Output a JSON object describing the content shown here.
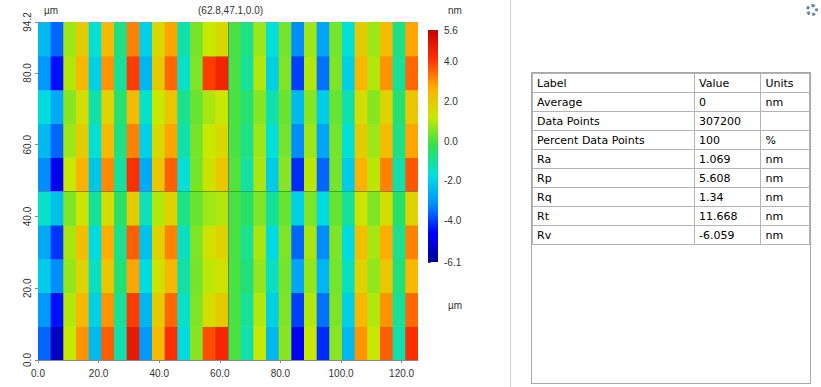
{
  "chart_data": {
    "type": "heatmap",
    "x_label": "µm",
    "y_label": "µm",
    "cursor": {
      "x": 62.8,
      "y": 47.1,
      "label": "(62.8,47.1,0.0)"
    },
    "xlim": [
      0,
      125.4
    ],
    "xticks": [
      {
        "value": 0,
        "label": "0.0"
      },
      {
        "value": 20,
        "label": "20.0"
      },
      {
        "value": 40,
        "label": "40.0"
      },
      {
        "value": 60,
        "label": "60.0"
      },
      {
        "value": 80,
        "label": "80.0"
      },
      {
        "value": 100,
        "label": "100.0"
      },
      {
        "value": 120,
        "label": "120.0"
      }
    ],
    "ylim": [
      0,
      94.2
    ],
    "yticks": [
      {
        "value": 0,
        "label": "0.0"
      },
      {
        "value": 20,
        "label": "20.0"
      },
      {
        "value": 40,
        "label": "40.0"
      },
      {
        "value": 60,
        "label": "60.0"
      },
      {
        "value": 80,
        "label": "80.0"
      },
      94.2
    ],
    "cells": {
      "x": [
        2.09,
        6.27,
        10.45,
        14.63,
        18.81,
        22.99,
        27.17,
        31.35,
        35.53,
        39.71,
        43.89,
        48.07,
        52.25,
        56.43,
        60.61,
        64.79,
        68.97,
        73.15,
        77.33,
        81.51,
        85.69,
        89.87,
        94.05,
        98.23,
        102.41,
        106.59,
        110.77,
        114.95,
        119.13,
        123.31
      ],
      "y": [
        4.71,
        14.13,
        23.55,
        32.97,
        42.39,
        51.81,
        61.23,
        70.65,
        80.07,
        89.49
      ],
      "z": [
        [
          -3.6,
          -5.4,
          1.2,
          3.0,
          -2.4,
          3.6,
          -1.2,
          4.8,
          -3.0,
          2.4,
          4.2,
          -1.8,
          0.6,
          3.8,
          4.4,
          0,
          -1.2,
          1.2,
          -2.4,
          0.6,
          -4.8,
          1.2,
          -4.2,
          0.6,
          -2.4,
          3.0,
          1.2,
          3.6,
          -1.2,
          4.2
        ],
        [
          -3,
          -4.5,
          1,
          2.5,
          -2,
          3,
          -1,
          4,
          -2.5,
          2,
          3.5,
          -1.5,
          0.5,
          1.5,
          2,
          0,
          -1,
          1,
          -2,
          0.5,
          -4,
          1,
          -3.5,
          0.5,
          -2,
          2.5,
          1,
          3,
          -1,
          3.5
        ],
        [
          -2.1,
          -3.2,
          0.7,
          1.8,
          -1.4,
          2.1,
          -0.7,
          2.8,
          -1.8,
          1.4,
          2.5,
          -1.1,
          0.4,
          1.1,
          1.4,
          0,
          -0.7,
          0.7,
          -1.4,
          0.4,
          -2.8,
          0.7,
          -2.5,
          0.4,
          -1.4,
          1.8,
          0.7,
          2.1,
          -0.7,
          2.5
        ],
        [
          -2.7,
          -4.1,
          0.9,
          2.3,
          -1.8,
          2.7,
          -0.9,
          3.6,
          -2.3,
          1.8,
          3.2,
          -1.4,
          0.5,
          1.4,
          1.8,
          0,
          -0.9,
          0.9,
          -1.8,
          0.5,
          -3.6,
          0.9,
          -3.2,
          0.5,
          -1.8,
          2.3,
          0.9,
          2.7,
          -0.9,
          3.2
        ],
        [
          -1.5,
          -2.3,
          0.5,
          1.3,
          -1,
          1.5,
          -0.5,
          2,
          -1.3,
          1,
          1.8,
          -0.8,
          0.3,
          0.8,
          1,
          0,
          -0.5,
          0.5,
          -1,
          0.3,
          -2,
          0.5,
          -1.8,
          0.3,
          -1,
          1.3,
          0.5,
          1.5,
          -0.5,
          1.8
        ],
        [
          -3.2,
          -4.8,
          1.2,
          2.6,
          -2.2,
          3.1,
          -1.1,
          4.2,
          -2.7,
          2.1,
          3.6,
          -1.6,
          0.4,
          1.4,
          2.1,
          0.1,
          -1.1,
          0.9,
          -2.1,
          0.6,
          -4.2,
          1.1,
          -3.6,
          0.4,
          -2.1,
          2.6,
          1.1,
          3.2,
          -1.2,
          3.7
        ],
        [
          -2.4,
          -3.6,
          0.8,
          2,
          -1.6,
          2.4,
          -0.8,
          3.2,
          -2,
          1.6,
          2.8,
          -1.2,
          0.4,
          1.2,
          1.6,
          0,
          -0.8,
          0.8,
          -1.6,
          0.4,
          -3.2,
          0.8,
          -2.8,
          0.4,
          -1.6,
          2,
          0.8,
          2.4,
          -0.8,
          2.8
        ],
        [
          -1.8,
          -2.7,
          0.6,
          1.5,
          -1.2,
          1.8,
          -0.6,
          2.4,
          -1.5,
          1.2,
          2.1,
          -0.9,
          0.3,
          0.9,
          1.2,
          0,
          -0.6,
          0.6,
          -1.2,
          0.3,
          -2.4,
          0.6,
          -2.1,
          0.3,
          -1.2,
          1.5,
          0.6,
          1.8,
          -0.6,
          2.1
        ],
        [
          -3,
          -4.5,
          1,
          2.5,
          -2,
          3,
          -1,
          4,
          -2.5,
          2,
          3.5,
          -1.5,
          0.5,
          4.0,
          4.5,
          0,
          -1,
          1,
          -2,
          0.5,
          -4,
          1,
          -3.5,
          0.5,
          -2,
          2.5,
          1,
          3,
          -1,
          3.5
        ],
        [
          -2.4,
          -3.6,
          0.8,
          2,
          -1.6,
          2.4,
          -0.8,
          3.2,
          -2,
          1.6,
          2.8,
          -1.2,
          0.4,
          1.2,
          1.6,
          0,
          -0.8,
          0.8,
          -1.6,
          0.4,
          -3.2,
          0.8,
          -2.8,
          0.4,
          -1.6,
          2,
          0.8,
          2.4,
          -0.8,
          2.8
        ]
      ]
    },
    "colorbar": {
      "label": "nm",
      "range": [
        -6.1,
        5.6
      ],
      "ticks": [
        -6.1,
        {
          "value": -4,
          "label": "-4.0"
        },
        {
          "value": -2,
          "label": "-2.0"
        },
        {
          "value": 0,
          "label": "0.0"
        },
        {
          "value": 2,
          "label": "2.0"
        },
        {
          "value": 4,
          "label": "4.0"
        },
        5.6
      ]
    }
  },
  "table": {
    "columns": [
      "Label",
      "Value",
      "Units"
    ],
    "rows": [
      {
        "label": "Average",
        "value": 0,
        "units": "nm"
      },
      {
        "label": "Data Points",
        "value": 307200
      },
      {
        "label": "Percent Data Points",
        "value": 100,
        "units": "%"
      },
      {
        "label": "Ra",
        "value": 1.069,
        "units": "nm"
      },
      {
        "label": "Rp",
        "value": 5.608,
        "units": "nm"
      },
      {
        "label": "Rq",
        "value": 1.34,
        "units": "nm"
      },
      {
        "label": "Rt",
        "value": 11.668,
        "units": "nm"
      },
      {
        "label": "Rv",
        "value": -6.059,
        "units": "nm"
      }
    ]
  }
}
